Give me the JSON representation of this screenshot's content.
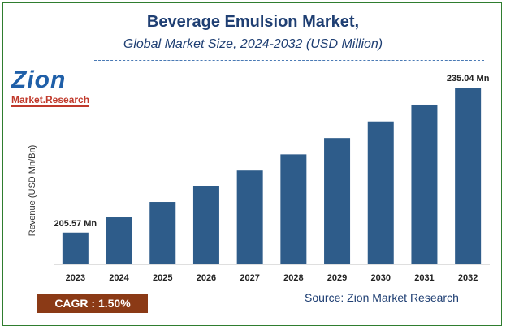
{
  "title": "Beverage Emulsion Market,",
  "subtitle": "Global Market Size, 2024-2032 (USD Million)",
  "logo": {
    "top": "Zion",
    "bottom": "Market.Research"
  },
  "cagr_label": "CAGR :  1.50%",
  "source_label": "Source: Zion Market Research",
  "colors": {
    "bar": "#2e5c8a",
    "title": "#1f3f73",
    "cagr_bg": "#8b3a16",
    "border": "#2f7d2f"
  },
  "chart_data": {
    "type": "bar",
    "title": "Beverage Emulsion Market,",
    "subtitle": "Global Market Size, 2024-2032 (USD Million)",
    "xlabel": "",
    "ylabel": "Revenue (USD Mn/Bn)",
    "categories": [
      "2023",
      "2024",
      "2025",
      "2026",
      "2027",
      "2028",
      "2029",
      "2030",
      "2031",
      "2032"
    ],
    "values": [
      205.57,
      208.66,
      211.79,
      214.97,
      218.19,
      221.46,
      224.79,
      228.16,
      231.58,
      235.04
    ],
    "data_labels": {
      "2023": "205.57 Mn",
      "2032": "235.04 Mn"
    },
    "grid": false,
    "legend": "none"
  }
}
